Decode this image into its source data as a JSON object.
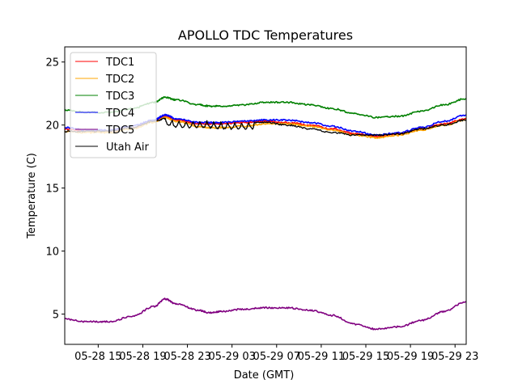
{
  "chart_data": {
    "type": "line",
    "title": "APOLLO TDC Temperatures",
    "xlabel": "Date (GMT)",
    "ylabel": "Temperature (C)",
    "x_unit": "hours since 05-28 12:00 GMT",
    "xlim": [
      0,
      36
    ],
    "ylim": [
      2.6,
      26.2
    ],
    "grid": false,
    "legend_position": "top-left",
    "x_ticks": [
      {
        "value": 3,
        "label": "05-28 15"
      },
      {
        "value": 7,
        "label": "05-28 19"
      },
      {
        "value": 11,
        "label": "05-28 23"
      },
      {
        "value": 15,
        "label": "05-29 03"
      },
      {
        "value": 19,
        "label": "05-29 07"
      },
      {
        "value": 23,
        "label": "05-29 11"
      },
      {
        "value": 27,
        "label": "05-29 15"
      },
      {
        "value": 31,
        "label": "05-29 19"
      },
      {
        "value": 35,
        "label": "05-29 23"
      }
    ],
    "y_ticks": [
      {
        "value": 5,
        "label": "5"
      },
      {
        "value": 10,
        "label": "10"
      },
      {
        "value": 15,
        "label": "15"
      },
      {
        "value": 20,
        "label": "20"
      },
      {
        "value": 25,
        "label": "25"
      }
    ],
    "x": [
      0,
      2,
      4,
      6,
      8,
      9,
      10,
      12,
      13,
      14,
      16,
      18,
      20,
      22,
      24,
      26,
      28,
      30,
      32,
      34,
      36
    ],
    "series": [
      {
        "name": "TDC1",
        "color": "#ff0000",
        "values": [
          19.7,
          19.5,
          19.5,
          19.8,
          20.3,
          20.7,
          20.4,
          20.1,
          20.1,
          20.1,
          20.2,
          20.3,
          20.2,
          20.0,
          19.7,
          19.3,
          19.1,
          19.3,
          19.7,
          20.1,
          20.5
        ]
      },
      {
        "name": "TDC2",
        "color": "#ffa500",
        "values": [
          19.5,
          19.4,
          19.4,
          19.7,
          20.2,
          20.6,
          20.3,
          19.9,
          19.8,
          19.8,
          19.9,
          20.1,
          20.1,
          19.9,
          19.6,
          19.2,
          19.0,
          19.2,
          19.6,
          20.0,
          20.4
        ]
      },
      {
        "name": "TDC3",
        "color": "#008000",
        "values": [
          21.2,
          21.0,
          21.0,
          21.3,
          21.8,
          22.2,
          22.0,
          21.6,
          21.5,
          21.5,
          21.6,
          21.8,
          21.8,
          21.6,
          21.3,
          20.9,
          20.6,
          20.7,
          21.1,
          21.6,
          22.1
        ]
      },
      {
        "name": "TDC4",
        "color": "#0000ff",
        "values": [
          19.8,
          19.6,
          19.6,
          19.9,
          20.4,
          20.8,
          20.5,
          20.2,
          20.2,
          20.2,
          20.3,
          20.4,
          20.4,
          20.2,
          19.9,
          19.5,
          19.2,
          19.4,
          19.8,
          20.3,
          20.8
        ]
      },
      {
        "name": "TDC5",
        "color": "#800080",
        "values": [
          4.6,
          4.4,
          4.4,
          4.8,
          5.6,
          6.2,
          5.8,
          5.3,
          5.1,
          5.2,
          5.4,
          5.5,
          5.5,
          5.3,
          4.9,
          4.2,
          3.8,
          4.0,
          4.5,
          5.2,
          6.0
        ]
      },
      {
        "name": "Utah Air",
        "color": "#000000",
        "values": [
          19.5,
          19.5,
          19.5,
          19.8,
          20.3,
          20.5,
          20.3,
          20.3,
          20.3,
          20.2,
          20.2,
          20.2,
          20.0,
          19.7,
          19.4,
          19.2,
          19.2,
          19.3,
          19.7,
          20.0,
          20.4
        ]
      }
    ]
  }
}
